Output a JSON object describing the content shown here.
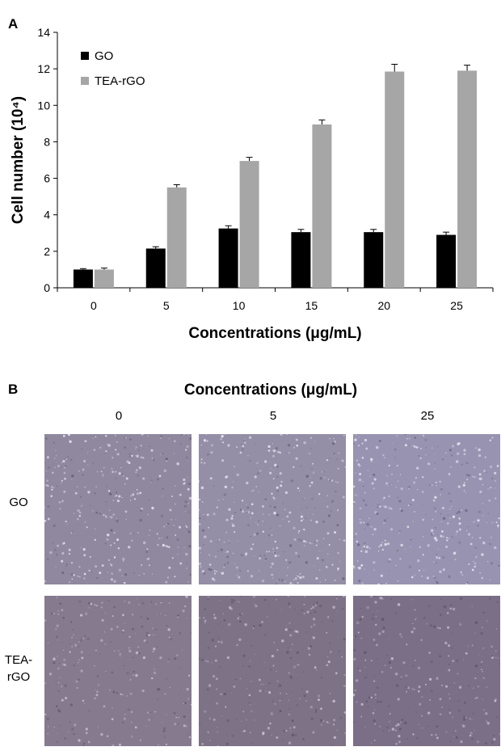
{
  "panel_a_label": "A",
  "panel_b_label": "B",
  "chart_data": {
    "type": "bar",
    "categories": [
      "0",
      "5",
      "10",
      "15",
      "20",
      "25"
    ],
    "series": [
      {
        "name": "GO",
        "values": [
          1.0,
          2.15,
          3.25,
          3.05,
          3.05,
          2.9
        ],
        "errors": [
          0.05,
          0.1,
          0.15,
          0.15,
          0.15,
          0.15
        ],
        "color": "#000000"
      },
      {
        "name": "TEA-rGO",
        "values": [
          1.0,
          5.5,
          6.95,
          8.95,
          11.85,
          11.9
        ],
        "errors": [
          0.08,
          0.15,
          0.2,
          0.25,
          0.4,
          0.3
        ],
        "color": "#a6a6a6"
      }
    ],
    "xlabel": "Concentrations (μg/mL)",
    "ylabel": "Cell number (10⁴)",
    "ylim": [
      0,
      14
    ],
    "yticks": [
      0,
      2,
      4,
      6,
      8,
      10,
      12,
      14
    ],
    "legend_position": "top-left",
    "grid": false
  },
  "panel_b": {
    "title": "Concentrations (μg/mL)",
    "columns": [
      "0",
      "5",
      "25"
    ],
    "rows": [
      "GO",
      "TEA-rGO"
    ],
    "row_label_lines": [
      [
        "GO"
      ],
      [
        "TEA-",
        "rGO"
      ]
    ],
    "image_tints": [
      [
        "#8f889e",
        "#948ea6",
        "#9893b0"
      ],
      [
        "#857a8e",
        "#7d7286",
        "#7a6f86"
      ]
    ]
  }
}
